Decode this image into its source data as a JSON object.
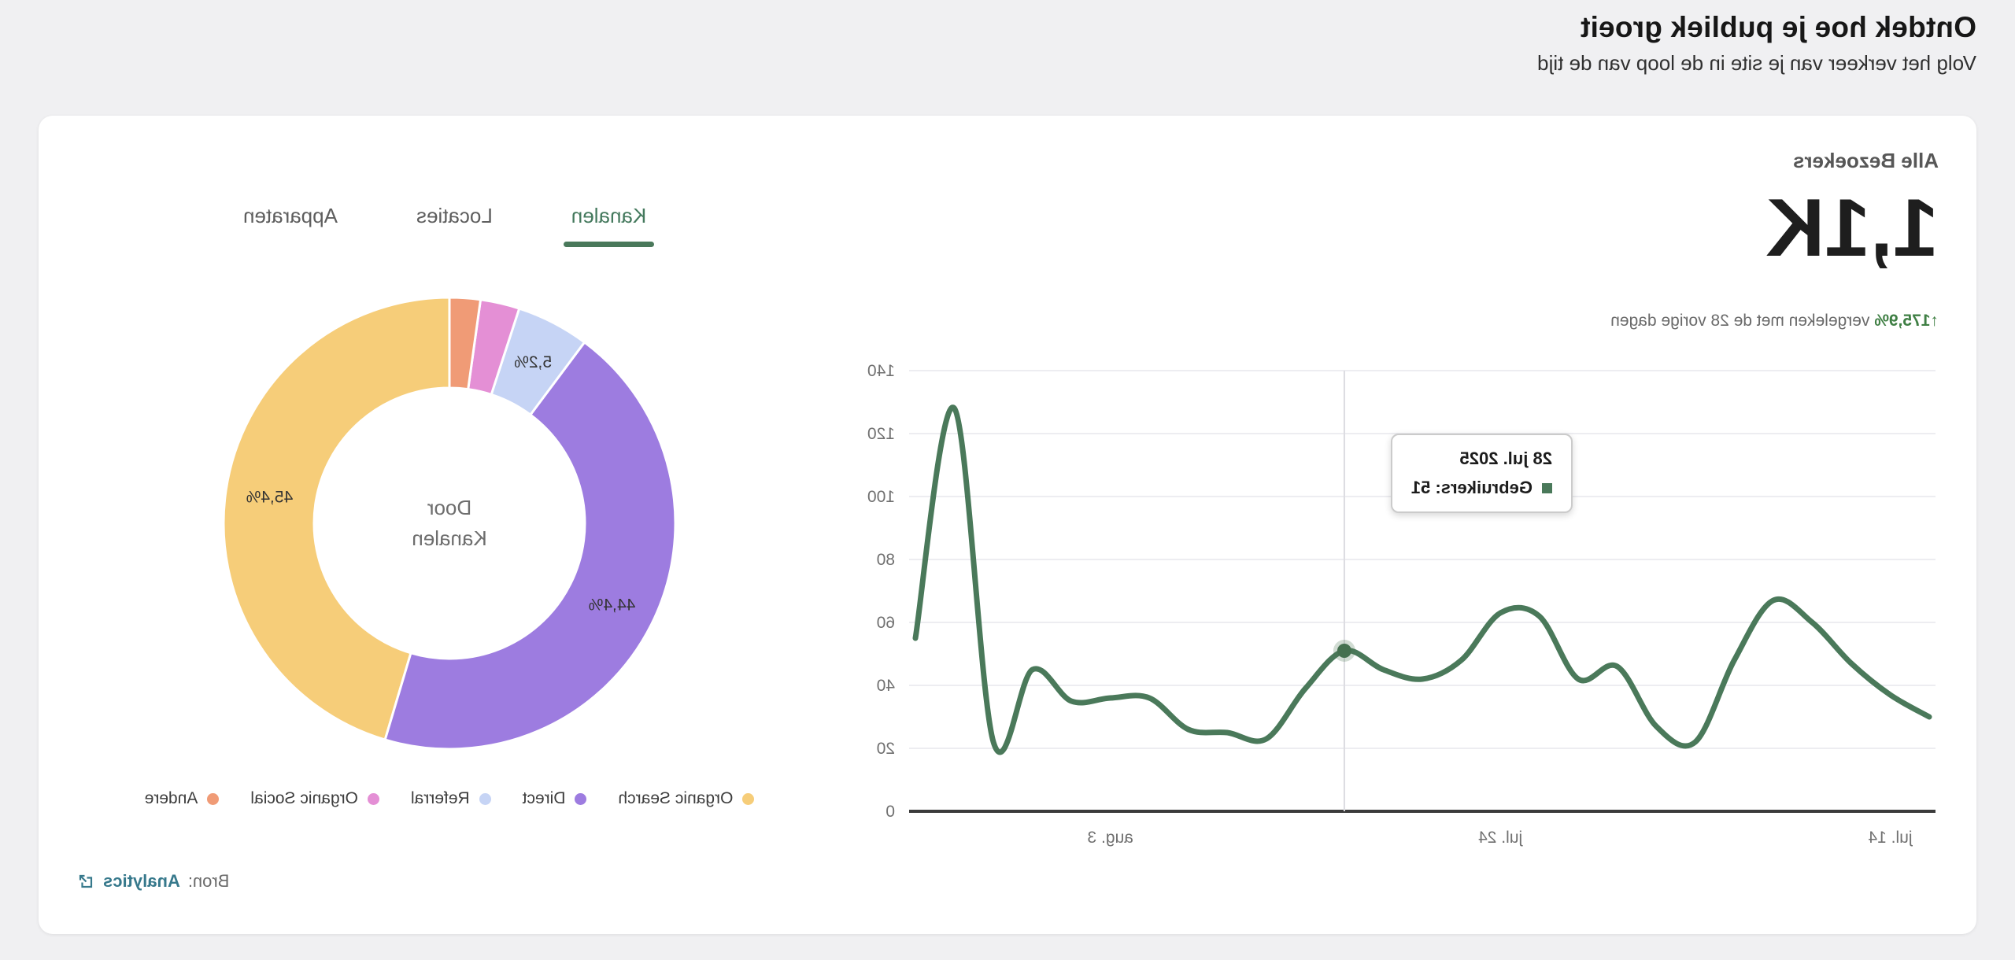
{
  "page": {
    "title": "Ontdek hoe je publiek groeit",
    "subtitle": "Volg het verkeer van je site in de loop van de tijd"
  },
  "colors": {
    "accent_green": "#4a795a",
    "change_green": "#3f7f44",
    "link_teal": "#37798c",
    "axis_gray": "#3b3b3b",
    "grid_gray": "#ededf1",
    "hover_line_gray": "#dcdce1"
  },
  "card": {
    "stats": {
      "label": "Alle Bezoekers",
      "value": "1,1K",
      "change_percent": "↑175,9%",
      "change_text": "vergeleken met de 28 vorige dagen"
    },
    "tabs": [
      {
        "label": "Kanalen",
        "active": true
      },
      {
        "label": "Locaties",
        "active": false
      },
      {
        "label": "Apparaten",
        "active": false
      }
    ],
    "source": {
      "prefix": "Bron:",
      "link": "Analytics",
      "icon": "external-link-icon"
    }
  },
  "chart_data": [
    {
      "type": "pie",
      "subtype": "donut",
      "center_label_lines": [
        "Door",
        "Kanalen"
      ],
      "slices": [
        {
          "label": "Organic Search",
          "percent": 45.4,
          "percent_label": "45,4%",
          "color": "#f6cd79"
        },
        {
          "label": "Direct",
          "percent": 44.4,
          "percent_label": "44,4%",
          "color": "#9d7ce0"
        },
        {
          "label": "Referral",
          "percent": 5.2,
          "percent_label": "5,2%",
          "color": "#c6d4f5"
        },
        {
          "label": "Organic Social",
          "percent": 2.8,
          "percent_label": "",
          "color": "#e48fd5"
        },
        {
          "label": "Andere",
          "percent": 2.2,
          "percent_label": "",
          "color": "#f09b76"
        }
      ],
      "legend_position": "bottom"
    },
    {
      "type": "line",
      "x": [
        "jul. 13",
        "jul. 14",
        "jul. 15",
        "jul. 16",
        "jul. 17",
        "jul. 18",
        "jul. 19",
        "jul. 20",
        "jul. 21",
        "jul. 22",
        "jul. 23",
        "jul. 24",
        "jul. 25",
        "jul. 26",
        "jul. 27",
        "jul. 28",
        "jul. 29",
        "jul. 30",
        "jul. 31",
        "aug. 1",
        "aug. 2",
        "aug. 3",
        "aug. 4",
        "aug. 5",
        "aug. 6",
        "aug. 7",
        "aug. 8"
      ],
      "series": [
        {
          "name": "Gebruikers",
          "color": "#4a795a",
          "values": [
            30,
            37,
            47,
            60,
            67,
            48,
            22,
            27,
            46,
            42,
            62,
            63,
            48,
            42,
            45,
            51,
            39,
            23,
            25,
            26,
            36,
            36,
            35,
            45,
            22,
            128,
            55
          ]
        }
      ],
      "ylim": [
        0,
        140
      ],
      "y_ticks": [
        0,
        20,
        40,
        60,
        80,
        100,
        120,
        140
      ],
      "x_tick_labels": [
        {
          "index": 1,
          "label": "jul. 14"
        },
        {
          "index": 11,
          "label": "jul. 24"
        },
        {
          "index": 21,
          "label": "aug. 3"
        }
      ],
      "grid": "horizontal",
      "hover": {
        "index": 15,
        "date": "28 jul. 2025",
        "series": "Gebruikers",
        "value": 51
      }
    }
  ]
}
